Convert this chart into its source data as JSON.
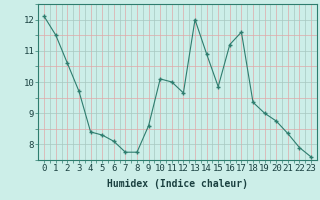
{
  "x": [
    0,
    1,
    2,
    3,
    4,
    5,
    6,
    7,
    8,
    9,
    10,
    11,
    12,
    13,
    14,
    15,
    16,
    17,
    18,
    19,
    20,
    21,
    22,
    23
  ],
  "y": [
    12.1,
    11.5,
    10.6,
    9.7,
    8.4,
    8.3,
    8.1,
    7.75,
    7.75,
    8.6,
    10.1,
    10.0,
    9.65,
    12.0,
    10.9,
    9.85,
    11.2,
    11.6,
    9.35,
    9.0,
    8.75,
    8.35,
    7.9,
    7.6
  ],
  "line_color": "#2e7d6e",
  "marker": "+",
  "bg_color": "#cceee8",
  "xlabel": "Humidex (Indice chaleur)",
  "xlim": [
    -0.5,
    23.5
  ],
  "ylim": [
    7.5,
    12.5
  ],
  "yticks": [
    8,
    9,
    10,
    11,
    12
  ],
  "xticks": [
    0,
    1,
    2,
    3,
    4,
    5,
    6,
    7,
    8,
    9,
    10,
    11,
    12,
    13,
    14,
    15,
    16,
    17,
    18,
    19,
    20,
    21,
    22,
    23
  ],
  "xtick_labels": [
    "0",
    "1",
    "2",
    "3",
    "4",
    "5",
    "6",
    "7",
    "8",
    "9",
    "10",
    "11",
    "12",
    "13",
    "14",
    "15",
    "16",
    "17",
    "18",
    "19",
    "20",
    "21",
    "22",
    "23"
  ],
  "xlabel_fontsize": 7,
  "tick_fontsize": 6.5,
  "grid_major_color": "#a8c8c0",
  "grid_minor_color": "#e0a8a8",
  "spine_color": "#2e7d6e"
}
